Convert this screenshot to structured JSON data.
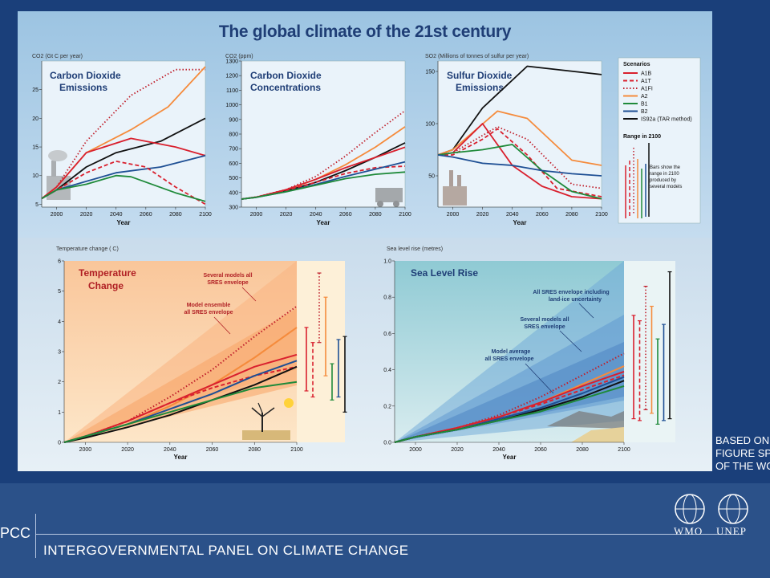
{
  "poster_title": "The global climate of the 21st century",
  "sidebar_text": [
    "BASED ON",
    "FIGURE SP",
    "OF THE WO"
  ],
  "footer": {
    "ipcc": "PCC",
    "org": "INTERGOVERNMENTAL PANEL ON CLIMATE CHANGE",
    "logos": [
      "WMO",
      "UNEP"
    ]
  },
  "colors": {
    "A1B": "#d9202e",
    "A1T": "#d9202e",
    "A1FI": "#c0202c",
    "A2": "#f58b3c",
    "B1": "#1f8a3a",
    "B2": "#1e4f94",
    "IS92a": "#111111"
  },
  "legend": {
    "title": "Scenarios",
    "items": [
      {
        "key": "A1B",
        "label": "A1B",
        "dash": "solid"
      },
      {
        "key": "A1T",
        "label": "A1T",
        "dash": "dashed"
      },
      {
        "key": "A1FI",
        "label": "A1FI",
        "dash": "dotted"
      },
      {
        "key": "A2",
        "label": "A2",
        "dash": "solid"
      },
      {
        "key": "B1",
        "label": "B1",
        "dash": "solid"
      },
      {
        "key": "B2",
        "label": "B2",
        "dash": "solid"
      },
      {
        "key": "IS92a",
        "label": "IS92a (TAR method)",
        "dash": "solid"
      }
    ],
    "range_title": "Range in 2100",
    "range_note": [
      "Bars show the",
      "range in 2100",
      "produced by",
      "several models"
    ]
  },
  "chart_data": [
    {
      "type": "line",
      "title": "Carbon Dioxide Emissions",
      "ylabel": "CO2 (Gt C per year)",
      "xlabel": "Year",
      "xlim": [
        1990,
        2100
      ],
      "ylim": [
        4.5,
        30
      ],
      "xticks": [
        2000,
        2020,
        2040,
        2060,
        2080,
        2100
      ],
      "yticks": [
        5,
        10,
        15,
        20,
        25
      ],
      "series": [
        {
          "name": "A1FI",
          "x": [
            1990,
            2000,
            2020,
            2050,
            2080,
            2100
          ],
          "y": [
            6,
            8,
            16,
            24,
            28.5,
            28.5
          ]
        },
        {
          "name": "A2",
          "x": [
            1990,
            2000,
            2020,
            2050,
            2075,
            2100
          ],
          "y": [
            6,
            8,
            14,
            18,
            22,
            29
          ]
        },
        {
          "name": "IS92a",
          "x": [
            1990,
            2000,
            2020,
            2040,
            2070,
            2100
          ],
          "y": [
            6,
            7.5,
            11.5,
            14,
            16,
            20
          ]
        },
        {
          "name": "A1B",
          "x": [
            1990,
            2000,
            2020,
            2050,
            2080,
            2100
          ],
          "y": [
            6,
            8,
            14,
            16.5,
            15,
            13.5
          ]
        },
        {
          "name": "B2",
          "x": [
            1990,
            2000,
            2020,
            2040,
            2070,
            2100
          ],
          "y": [
            6,
            7.5,
            9,
            10.5,
            11.5,
            13.5
          ]
        },
        {
          "name": "A1T",
          "x": [
            1990,
            2000,
            2020,
            2040,
            2060,
            2080,
            2100
          ],
          "y": [
            6,
            7.5,
            10.5,
            12.5,
            11.5,
            8,
            5
          ]
        },
        {
          "name": "B1",
          "x": [
            1990,
            2000,
            2020,
            2040,
            2050,
            2080,
            2100
          ],
          "y": [
            6,
            7.5,
            8.5,
            10,
            9.8,
            7,
            5.5
          ]
        }
      ]
    },
    {
      "type": "line",
      "title": "Carbon Dioxide Concentrations",
      "ylabel": "CO2 (ppm)",
      "xlabel": "Year",
      "xlim": [
        1990,
        2100
      ],
      "ylim": [
        300,
        1300
      ],
      "xticks": [
        2000,
        2020,
        2040,
        2060,
        2080,
        2100
      ],
      "yticks": [
        300,
        400,
        500,
        600,
        700,
        800,
        900,
        1000,
        1100,
        1200,
        1300
      ],
      "series": [
        {
          "name": "A1FI",
          "x": [
            1990,
            2000,
            2020,
            2040,
            2060,
            2080,
            2100
          ],
          "y": [
            355,
            370,
            420,
            510,
            650,
            810,
            960
          ]
        },
        {
          "name": "A2",
          "x": [
            1990,
            2000,
            2020,
            2040,
            2060,
            2080,
            2100
          ],
          "y": [
            355,
            368,
            415,
            490,
            590,
            710,
            850
          ]
        },
        {
          "name": "IS92a",
          "x": [
            1990,
            2000,
            2020,
            2040,
            2060,
            2080,
            2100
          ],
          "y": [
            355,
            368,
            410,
            470,
            550,
            640,
            740
          ]
        },
        {
          "name": "A1B",
          "x": [
            1990,
            2000,
            2020,
            2040,
            2060,
            2080,
            2100
          ],
          "y": [
            355,
            368,
            420,
            490,
            570,
            640,
            710
          ]
        },
        {
          "name": "A1T",
          "x": [
            1990,
            2000,
            2020,
            2040,
            2060,
            2080,
            2100
          ],
          "y": [
            355,
            368,
            415,
            470,
            530,
            570,
            580
          ]
        },
        {
          "name": "B2",
          "x": [
            1990,
            2000,
            2020,
            2040,
            2060,
            2080,
            2100
          ],
          "y": [
            355,
            367,
            405,
            455,
            510,
            560,
            610
          ]
        },
        {
          "name": "B1",
          "x": [
            1990,
            2000,
            2020,
            2040,
            2060,
            2080,
            2100
          ],
          "y": [
            355,
            367,
            405,
            450,
            495,
            525,
            540
          ]
        }
      ]
    },
    {
      "type": "line",
      "title": "Sulfur Dioxide Emissions",
      "ylabel": "SO2 (Millions of tonnes of sulfur per year)",
      "xlabel": "Year",
      "xlim": [
        1990,
        2100
      ],
      "ylim": [
        20,
        160
      ],
      "xticks": [
        2000,
        2020,
        2040,
        2060,
        2080,
        2100
      ],
      "yticks": [
        50,
        100,
        150
      ],
      "series": [
        {
          "name": "IS92a",
          "x": [
            1990,
            2000,
            2020,
            2050,
            2100
          ],
          "y": [
            70,
            75,
            115,
            155,
            147
          ]
        },
        {
          "name": "A2",
          "x": [
            1990,
            2000,
            2030,
            2050,
            2080,
            2100
          ],
          "y": [
            70,
            75,
            112,
            105,
            65,
            60
          ]
        },
        {
          "name": "A1B",
          "x": [
            1990,
            2000,
            2020,
            2040,
            2060,
            2080,
            2100
          ],
          "y": [
            70,
            72,
            100,
            60,
            40,
            30,
            28
          ]
        },
        {
          "name": "A1T",
          "x": [
            1990,
            2000,
            2020,
            2030,
            2050,
            2070,
            2100
          ],
          "y": [
            70,
            70,
            85,
            95,
            70,
            38,
            30
          ]
        },
        {
          "name": "A1FI",
          "x": [
            1990,
            2000,
            2030,
            2050,
            2080,
            2100
          ],
          "y": [
            70,
            72,
            97,
            85,
            42,
            38
          ]
        },
        {
          "name": "B1",
          "x": [
            1990,
            2000,
            2020,
            2040,
            2060,
            2080,
            2100
          ],
          "y": [
            70,
            72,
            75,
            80,
            55,
            35,
            28
          ]
        },
        {
          "name": "B2",
          "x": [
            1990,
            2000,
            2020,
            2040,
            2060,
            2080,
            2100
          ],
          "y": [
            70,
            68,
            62,
            60,
            55,
            52,
            50
          ]
        }
      ]
    },
    {
      "type": "line",
      "title": "Temperature Change",
      "ylabel": "Temperature change ( C)",
      "xlabel": "Year",
      "xlim": [
        1990,
        2100
      ],
      "ylim": [
        0,
        6
      ],
      "xticks": [
        2000,
        2020,
        2040,
        2060,
        2080,
        2100
      ],
      "yticks": [
        0,
        1,
        2,
        3,
        4,
        5,
        6
      ],
      "annotations": [
        "Several models all SRES envelope",
        "Model ensemble all SRES envelope"
      ],
      "series": [
        {
          "name": "A1FI",
          "x": [
            1990,
            2000,
            2020,
            2040,
            2060,
            2080,
            2100
          ],
          "y": [
            0,
            0.2,
            0.7,
            1.5,
            2.4,
            3.5,
            4.5
          ]
        },
        {
          "name": "A2",
          "x": [
            1990,
            2000,
            2020,
            2040,
            2060,
            2080,
            2100
          ],
          "y": [
            0,
            0.2,
            0.6,
            1.2,
            1.9,
            2.8,
            3.8
          ]
        },
        {
          "name": "A1B",
          "x": [
            1990,
            2000,
            2020,
            2040,
            2060,
            2080,
            2100
          ],
          "y": [
            0,
            0.2,
            0.7,
            1.3,
            1.9,
            2.5,
            2.9
          ]
        },
        {
          "name": "A1T",
          "x": [
            1990,
            2000,
            2020,
            2040,
            2060,
            2080,
            2100
          ],
          "y": [
            0,
            0.2,
            0.7,
            1.3,
            1.8,
            2.2,
            2.5
          ]
        },
        {
          "name": "B2",
          "x": [
            1990,
            2000,
            2020,
            2040,
            2060,
            2080,
            2100
          ],
          "y": [
            0,
            0.2,
            0.6,
            1.1,
            1.6,
            2.2,
            2.7
          ]
        },
        {
          "name": "IS92a",
          "x": [
            1990,
            2000,
            2020,
            2040,
            2060,
            2080,
            2100
          ],
          "y": [
            0,
            0.15,
            0.5,
            0.9,
            1.4,
            1.9,
            2.5
          ]
        },
        {
          "name": "B1",
          "x": [
            1990,
            2000,
            2020,
            2040,
            2060,
            2080,
            2100
          ],
          "y": [
            0,
            0.2,
            0.6,
            1.0,
            1.4,
            1.8,
            2.0
          ]
        }
      ],
      "range_bars": [
        {
          "name": "A1B",
          "low": 1.7,
          "high": 3.8
        },
        {
          "name": "A1T",
          "low": 1.5,
          "high": 3.3
        },
        {
          "name": "A1FI",
          "low": 3.3,
          "high": 5.6
        },
        {
          "name": "A2",
          "low": 2.2,
          "high": 4.8
        },
        {
          "name": "B1",
          "low": 1.4,
          "high": 2.6
        },
        {
          "name": "B2",
          "low": 1.5,
          "high": 3.4
        },
        {
          "name": "IS92a",
          "low": 1.0,
          "high": 3.5
        }
      ]
    },
    {
      "type": "line",
      "title": "Sea Level Rise",
      "ylabel": "Sea level rise (metres)",
      "xlabel": "Year",
      "xlim": [
        1990,
        2100
      ],
      "ylim": [
        0,
        1.0
      ],
      "xticks": [
        2000,
        2020,
        2040,
        2060,
        2080,
        2100
      ],
      "yticks": [
        0.0,
        0.2,
        0.4,
        0.6,
        0.8,
        1.0
      ],
      "annotations": [
        "All SRES envelope including land-ice uncertainty",
        "Several models all SRES envelope",
        "Model average all SRES envelope"
      ],
      "series": [
        {
          "name": "A1FI",
          "x": [
            1990,
            2000,
            2020,
            2040,
            2060,
            2080,
            2100
          ],
          "y": [
            0,
            0.03,
            0.08,
            0.15,
            0.25,
            0.37,
            0.49
          ]
        },
        {
          "name": "A2",
          "x": [
            1990,
            2000,
            2020,
            2040,
            2060,
            2080,
            2100
          ],
          "y": [
            0,
            0.03,
            0.08,
            0.14,
            0.22,
            0.32,
            0.42
          ]
        },
        {
          "name": "A1B",
          "x": [
            1990,
            2000,
            2020,
            2040,
            2060,
            2080,
            2100
          ],
          "y": [
            0,
            0.03,
            0.08,
            0.14,
            0.22,
            0.31,
            0.39
          ]
        },
        {
          "name": "A1T",
          "x": [
            1990,
            2000,
            2020,
            2040,
            2060,
            2080,
            2100
          ],
          "y": [
            0,
            0.03,
            0.08,
            0.14,
            0.21,
            0.29,
            0.37
          ]
        },
        {
          "name": "B2",
          "x": [
            1990,
            2000,
            2020,
            2040,
            2060,
            2080,
            2100
          ],
          "y": [
            0,
            0.03,
            0.07,
            0.13,
            0.19,
            0.27,
            0.36
          ]
        },
        {
          "name": "IS92a",
          "x": [
            1990,
            2000,
            2020,
            2040,
            2060,
            2080,
            2100
          ],
          "y": [
            0,
            0.03,
            0.07,
            0.12,
            0.18,
            0.25,
            0.34
          ]
        },
        {
          "name": "B1",
          "x": [
            1990,
            2000,
            2020,
            2040,
            2060,
            2080,
            2100
          ],
          "y": [
            0,
            0.03,
            0.07,
            0.12,
            0.17,
            0.24,
            0.31
          ]
        }
      ],
      "range_bars": [
        {
          "name": "A1B",
          "low": 0.13,
          "high": 0.7
        },
        {
          "name": "A1T",
          "low": 0.12,
          "high": 0.67
        },
        {
          "name": "A1FI",
          "low": 0.18,
          "high": 0.86
        },
        {
          "name": "A2",
          "low": 0.16,
          "high": 0.75
        },
        {
          "name": "B1",
          "low": 0.1,
          "high": 0.57
        },
        {
          "name": "B2",
          "low": 0.12,
          "high": 0.65
        },
        {
          "name": "IS92a",
          "low": 0.13,
          "high": 0.94
        }
      ]
    }
  ]
}
